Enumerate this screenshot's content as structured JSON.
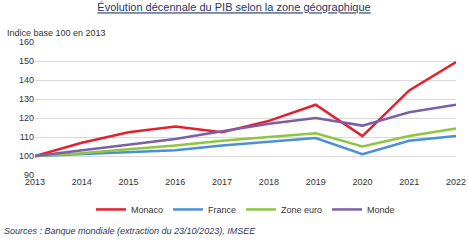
{
  "chart_data": {
    "type": "line",
    "title": "Évolution décennale du PIB selon la zone géographique",
    "subtitle": "Indice base 100 en 2013",
    "source": "Sources : Banque mondiale (extraction du 23/10/2023), IMSEE",
    "categories": [
      "2013",
      "2014",
      "2015",
      "2016",
      "2017",
      "2018",
      "2019",
      "2020",
      "2021",
      "2022"
    ],
    "series": [
      {
        "name": "Monaco",
        "color": "#e3202e",
        "values": [
          100,
          107,
          112.5,
          115.5,
          112.5,
          118.5,
          127,
          110.5,
          134.5,
          149.5
        ]
      },
      {
        "name": "France",
        "color": "#4a90d9",
        "values": [
          100,
          101,
          102,
          103,
          105.5,
          107.5,
          109.5,
          101,
          108,
          110.5
        ]
      },
      {
        "name": "Zone euro",
        "color": "#8dc63f",
        "values": [
          100,
          101.5,
          103.5,
          105.5,
          108,
          110,
          112,
          105,
          110.5,
          114.5
        ]
      },
      {
        "name": "Monde",
        "color": "#7d5ea8",
        "values": [
          100,
          103,
          106,
          109,
          113,
          117,
          120,
          116,
          123,
          127
        ]
      }
    ],
    "ylim": [
      90,
      160
    ],
    "yticks": [
      90,
      100,
      110,
      120,
      130,
      140,
      150,
      160
    ],
    "grid": true,
    "legend": "bottom"
  }
}
